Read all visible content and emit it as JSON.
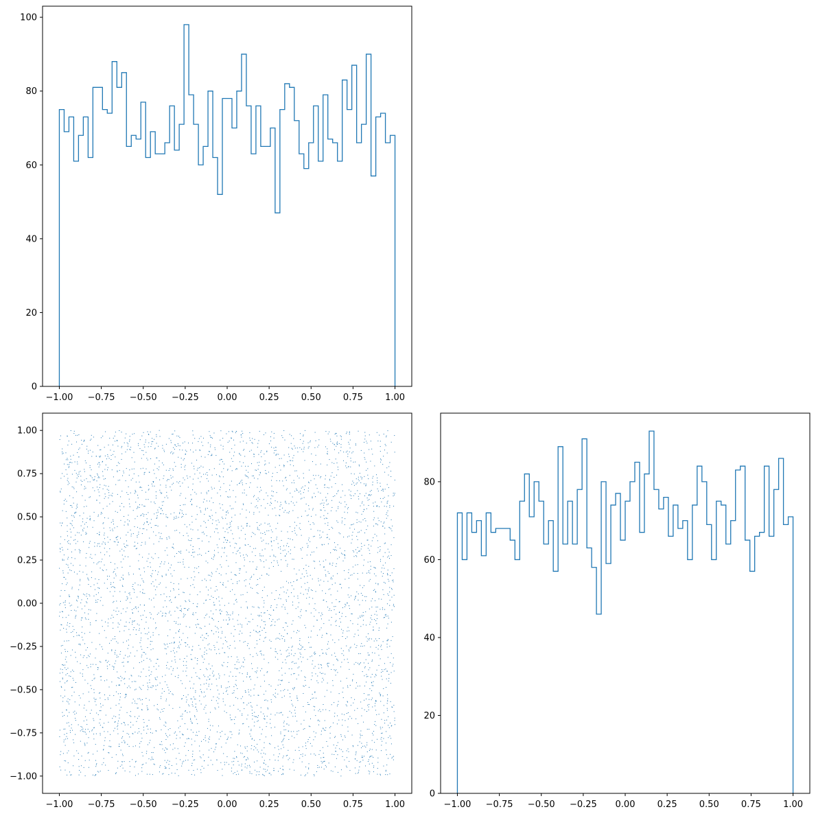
{
  "colors": {
    "series": "#1f77b4",
    "axis": "#000000",
    "background": "#ffffff"
  },
  "chart_data": [
    {
      "id": "top-left",
      "type": "histogram-step",
      "title": "",
      "xlabel": "",
      "ylabel": "",
      "xlim": [
        -1.1,
        1.1
      ],
      "ylim": [
        0,
        103
      ],
      "xticks": [
        -1.0,
        -0.75,
        -0.5,
        -0.25,
        0.0,
        0.25,
        0.5,
        0.75,
        1.0
      ],
      "xtick_labels": [
        "−1.00",
        "−0.75",
        "−0.50",
        "−0.25",
        "0.00",
        "0.25",
        "0.50",
        "0.75",
        "1.00"
      ],
      "yticks": [
        0,
        20,
        40,
        60,
        80,
        100
      ],
      "ytick_labels": [
        "0",
        "20",
        "40",
        "60",
        "80",
        "100"
      ],
      "bin_range": [
        -1.0,
        1.0
      ],
      "counts": [
        75,
        69,
        73,
        61,
        68,
        73,
        62,
        81,
        81,
        75,
        74,
        88,
        81,
        85,
        65,
        68,
        67,
        77,
        62,
        69,
        63,
        63,
        66,
        76,
        64,
        71,
        98,
        79,
        71,
        60,
        65,
        80,
        62,
        52,
        78,
        78,
        70,
        80,
        90,
        76,
        63,
        76,
        65,
        65,
        70,
        47,
        75,
        82,
        81,
        72,
        63,
        59,
        66,
        76,
        61,
        79,
        67,
        66,
        61,
        83,
        75,
        87,
        66,
        71,
        90,
        57,
        73,
        74,
        66,
        68
      ]
    },
    {
      "id": "bottom-left",
      "type": "scatter",
      "title": "",
      "xlabel": "",
      "ylabel": "",
      "xlim": [
        -1.1,
        1.1
      ],
      "ylim": [
        -1.1,
        1.1
      ],
      "xticks": [
        -1.0,
        -0.75,
        -0.5,
        -0.25,
        0.0,
        0.25,
        0.5,
        0.75,
        1.0
      ],
      "xtick_labels": [
        "−1.00",
        "−0.75",
        "−0.50",
        "−0.25",
        "0.00",
        "0.25",
        "0.50",
        "0.75",
        "1.00"
      ],
      "yticks": [
        -1.0,
        -0.75,
        -0.5,
        -0.25,
        0.0,
        0.25,
        0.5,
        0.75,
        1.0
      ],
      "ytick_labels": [
        "−1.00",
        "−0.75",
        "−0.50",
        "−0.25",
        "0.00",
        "0.25",
        "0.50",
        "0.75",
        "1.00"
      ],
      "n_points": 5000,
      "distribution": "uniform",
      "x_range": [
        -1.0,
        1.0
      ],
      "y_range": [
        -1.0,
        1.0
      ]
    },
    {
      "id": "bottom-right",
      "type": "histogram-step",
      "title": "",
      "xlabel": "",
      "ylabel": "",
      "xlim": [
        -1.1,
        1.1
      ],
      "ylim": [
        0,
        97.6
      ],
      "xticks": [
        -1.0,
        -0.75,
        -0.5,
        -0.25,
        0.0,
        0.25,
        0.5,
        0.75,
        1.0
      ],
      "xtick_labels": [
        "−1.00",
        "−0.75",
        "−0.50",
        "−0.25",
        "0.00",
        "0.25",
        "0.50",
        "0.75",
        "1.00"
      ],
      "yticks": [
        0,
        20,
        40,
        60,
        80
      ],
      "ytick_labels": [
        "0",
        "20",
        "40",
        "60",
        "80"
      ],
      "bin_range": [
        -1.0,
        1.0
      ],
      "counts": [
        72,
        60,
        72,
        67,
        70,
        61,
        72,
        67,
        68,
        68,
        68,
        65,
        60,
        75,
        82,
        71,
        80,
        75,
        64,
        70,
        57,
        89,
        64,
        75,
        64,
        78,
        91,
        63,
        58,
        46,
        80,
        59,
        74,
        77,
        65,
        75,
        80,
        85,
        67,
        82,
        93,
        78,
        73,
        76,
        66,
        74,
        68,
        70,
        60,
        74,
        84,
        80,
        69,
        60,
        75,
        74,
        64,
        70,
        83,
        84,
        65,
        57,
        66,
        67,
        84,
        66,
        78,
        86,
        69,
        71
      ]
    }
  ]
}
